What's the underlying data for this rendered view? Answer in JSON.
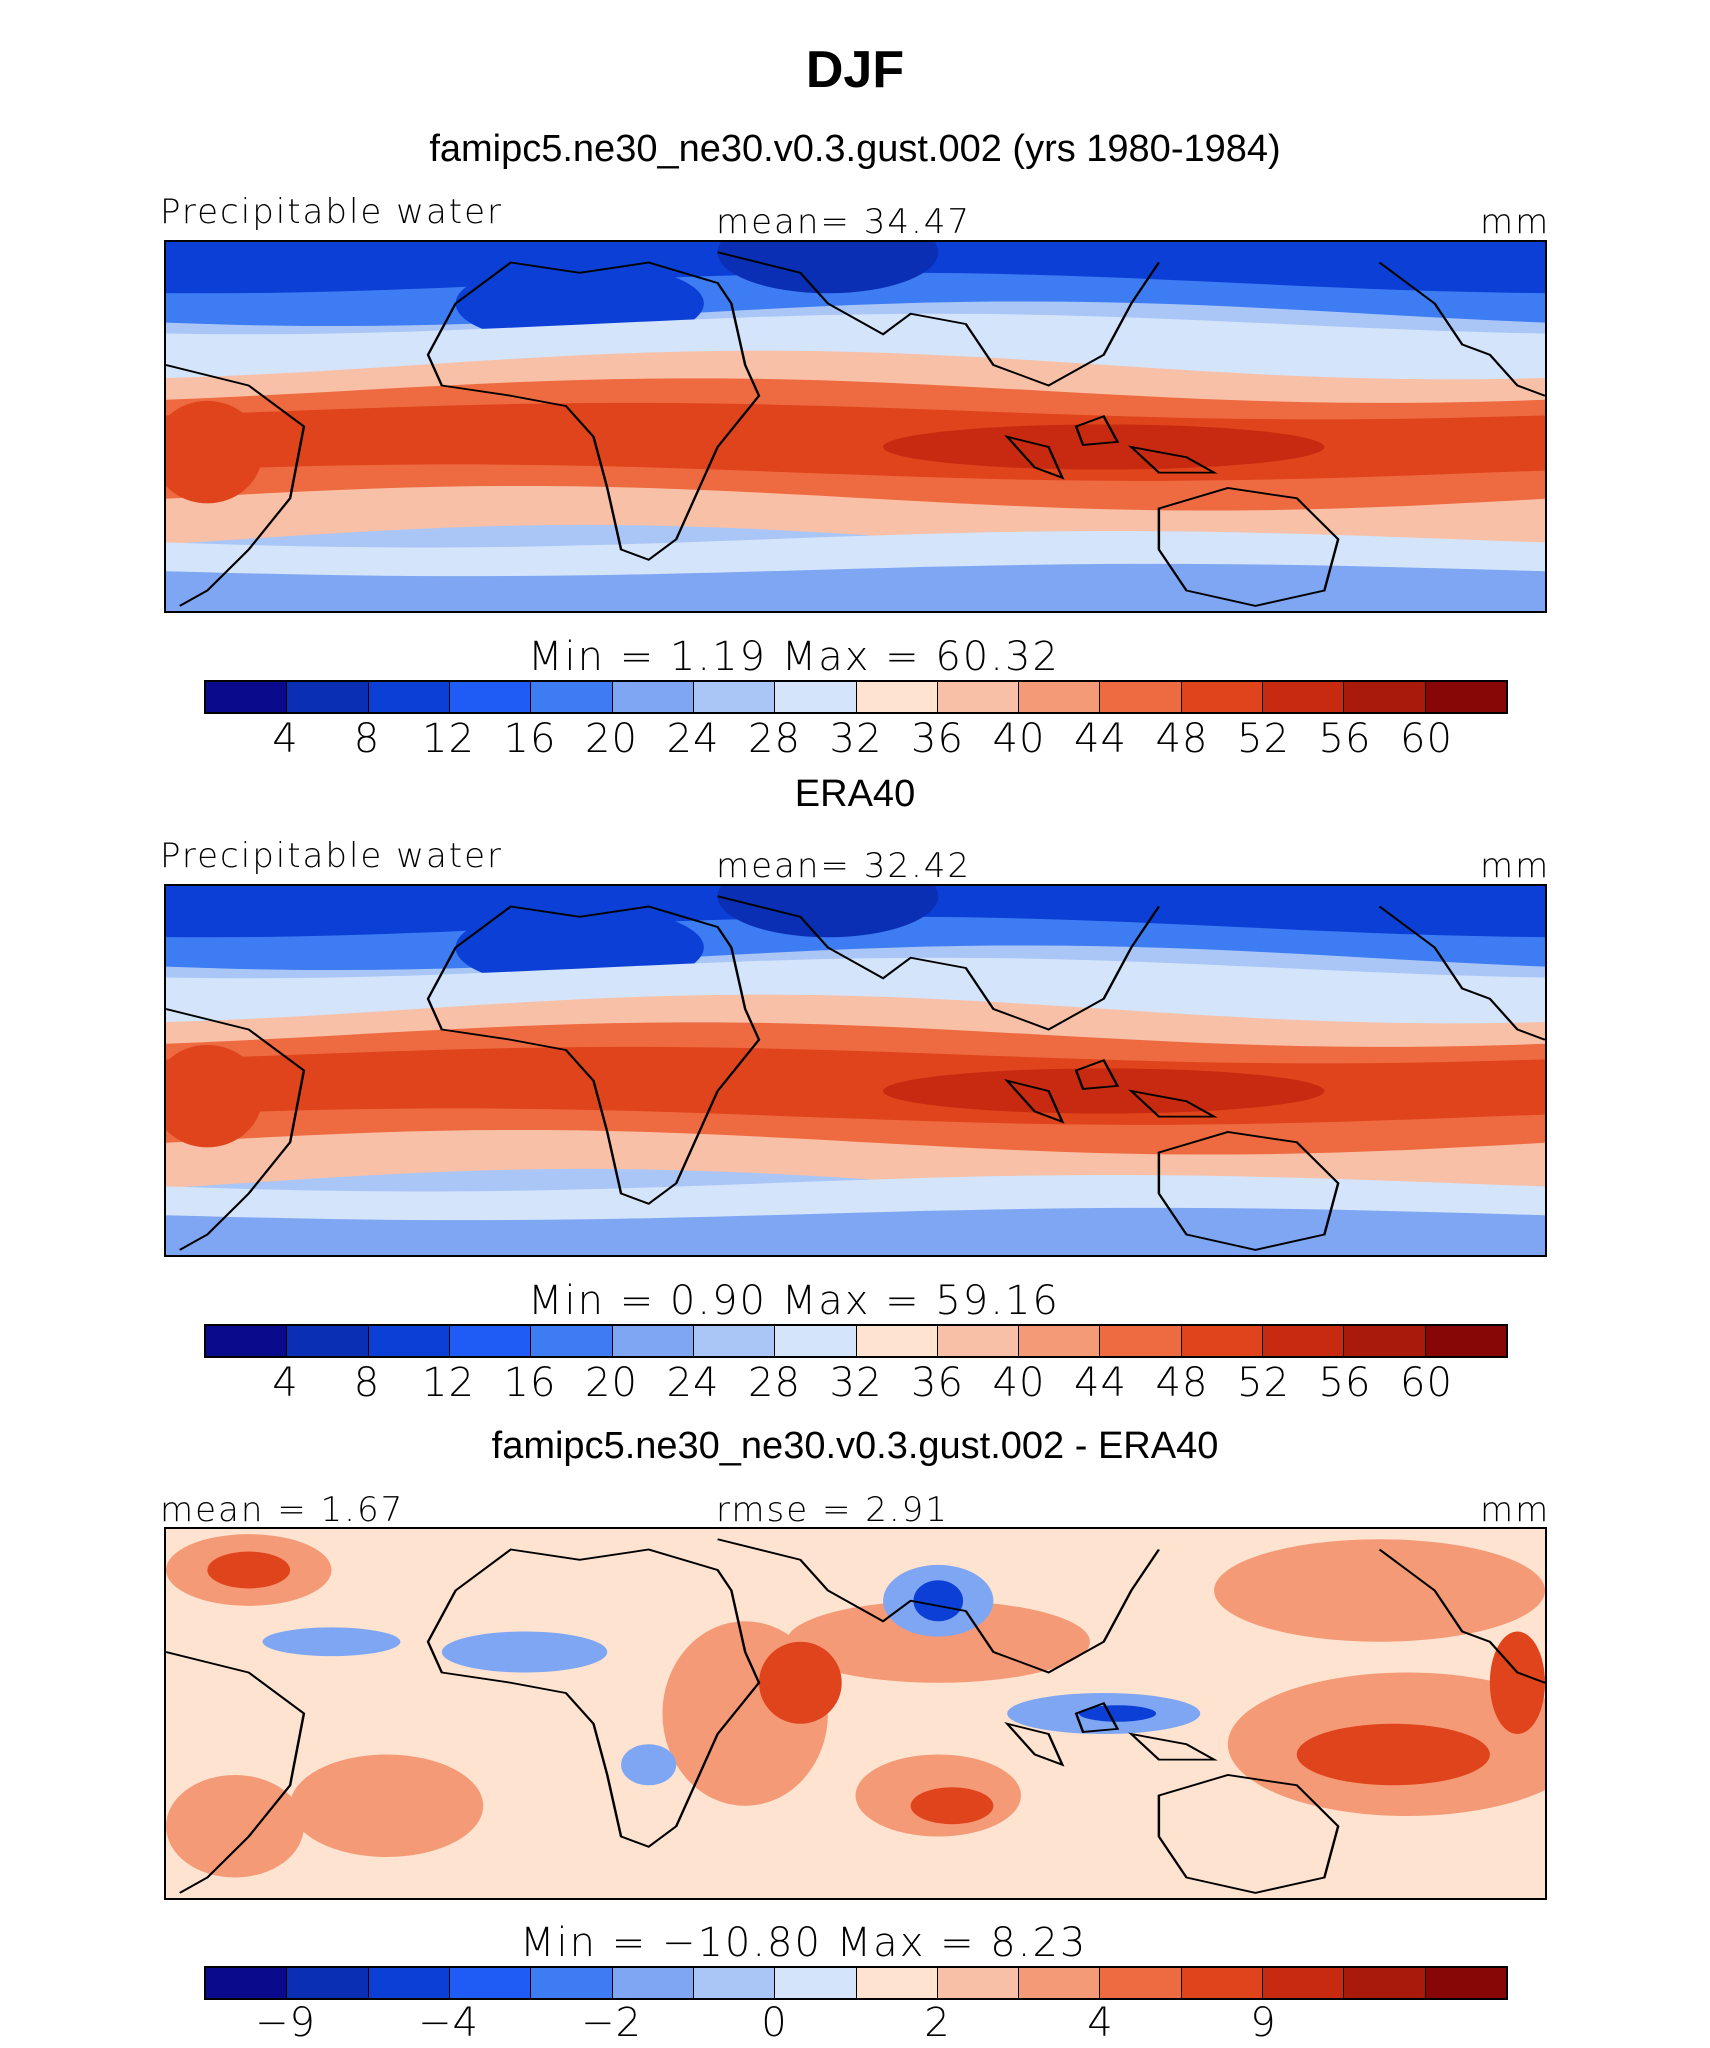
{
  "title": "DJF",
  "scale_colors": [
    "#0a0a8c",
    "#0a2fb5",
    "#0b3fd6",
    "#1f5cf5",
    "#3d7cf2",
    "#7ea6f3",
    "#aac6f7",
    "#d3e4fb",
    "#fde3d0",
    "#f8c0a6",
    "#f59a76",
    "#ee6b42",
    "#e0441c",
    "#c72a10",
    "#a91a0a",
    "#870707"
  ],
  "panels": [
    {
      "title": "famipc5.ne30_ne30.v0.3.gust.002 (yrs 1980-1984)",
      "left_label": "Precipitable water",
      "center_label": "mean=   34.47",
      "units": "mm",
      "minmax": "Min  =    1.19  Max  =   60.32",
      "ticks": [
        "4",
        "8",
        "12",
        "16",
        "20",
        "24",
        "28",
        "32",
        "36",
        "40",
        "44",
        "48",
        "52",
        "56",
        "60"
      ],
      "map_kind": "field"
    },
    {
      "title": "ERA40",
      "left_label": "Precipitable water",
      "center_label": "mean=   32.42",
      "units": "mm",
      "minmax": "Min  =    0.90  Max  =   59.16",
      "ticks": [
        "4",
        "8",
        "12",
        "16",
        "20",
        "24",
        "28",
        "32",
        "36",
        "40",
        "44",
        "48",
        "52",
        "56",
        "60"
      ],
      "map_kind": "field"
    },
    {
      "title": "famipc5.ne30_ne30.v0.3.gust.002 - ERA40",
      "left_label": "mean  =    1.67",
      "center_label": "rmse  =    2.91",
      "units": "mm",
      "minmax": "Min  =  −10.80  Max  =    8.23",
      "ticks": [
        "−9",
        "",
        "−4",
        "",
        "−2",
        "",
        "0",
        "",
        "2",
        "",
        "4",
        "",
        "9",
        "",
        ""
      ],
      "map_kind": "diff"
    }
  ]
}
